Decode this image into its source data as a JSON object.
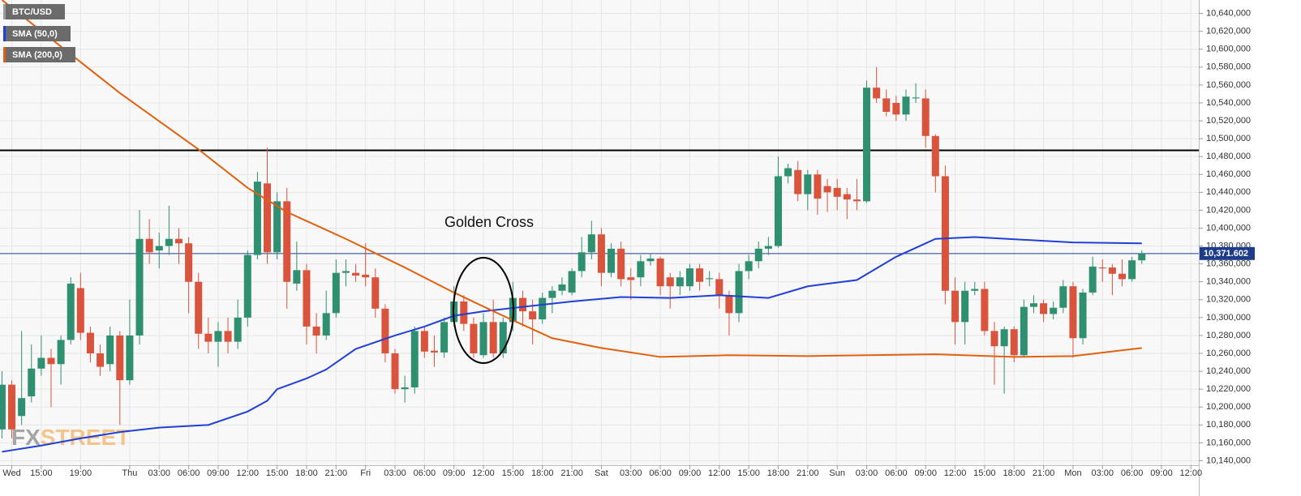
{
  "chart_data": {
    "type": "candlestick",
    "symbol": "BTC/USD",
    "up_color": "#2f8f71",
    "down_color": "#d9533d",
    "x": [
      -13,
      -12,
      -11,
      -10,
      -9,
      -8,
      -7,
      -6,
      -5,
      -4,
      -3,
      -2,
      -1,
      0,
      1,
      2,
      3,
      4,
      5,
      6,
      7,
      8,
      9,
      10,
      11,
      12,
      13,
      14,
      15,
      16,
      17,
      18,
      19,
      20,
      21,
      22,
      23,
      24,
      25,
      26,
      27,
      28,
      29,
      30,
      31,
      32,
      33,
      34,
      35,
      36,
      37,
      38,
      39,
      40,
      41,
      42,
      43,
      44,
      45,
      46,
      47,
      48,
      49,
      50,
      51,
      52,
      53,
      54,
      55,
      56,
      57,
      58,
      59,
      60,
      61,
      62,
      63,
      64,
      65,
      66,
      67,
      68,
      69,
      70,
      71,
      72,
      73,
      74,
      75,
      76,
      77,
      78,
      79,
      80,
      81,
      82,
      83,
      84,
      85,
      86,
      87,
      88,
      89,
      90,
      91,
      92,
      93,
      94,
      95,
      96,
      97,
      98,
      99,
      100,
      101,
      102,
      103
    ],
    "open": [
      10175,
      10225,
      10190,
      10212,
      10243,
      10255,
      10248,
      10275,
      10333,
      10283,
      10260,
      10248,
      10280,
      10230,
      10280,
      10388,
      10375,
      10380,
      10388,
      10383,
      10340,
      10282,
      10273,
      10285,
      10273,
      10300,
      10370,
      10450,
      10373,
      10430,
      10338,
      10353,
      10290,
      10280,
      10305,
      10350,
      10350,
      10348,
      10345,
      10310,
      10260,
      10220,
      10222,
      10285,
      10263,
      10261,
      10295,
      10318,
      10293,
      10258,
      10295,
      10260,
      10295,
      10322,
      10307,
      10298,
      10322,
      10330,
      10328,
      10352,
      10373,
      10393,
      10350,
      10377,
      10345,
      10345,
      10363,
      10366,
      10345,
      10335,
      10335,
      10355,
      10343,
      10343,
      10325,
      10305,
      10352,
      10363,
      10377,
      10380,
      10458,
      10465,
      10438,
      10460,
      10447,
      10445,
      10438,
      10432,
      10430,
      10557,
      10545,
      10540,
      10527,
      10545,
      10545,
      10503,
      10458,
      10330,
      10295,
      10330,
      10332,
      10285,
      10268,
      10287,
      10258,
      10312,
      10316,
      10304,
      10311,
      10335,
      10277,
      10328,
      10356,
      10356,
      10349,
      10343,
      10364
    ],
    "high": [
      10240,
      10230,
      10285,
      10270,
      10280,
      10265,
      10280,
      10345,
      10350,
      10290,
      10270,
      10290,
      10285,
      10320,
      10420,
      10410,
      10395,
      10425,
      10400,
      10390,
      10350,
      10300,
      10295,
      10300,
      10320,
      10375,
      10463,
      10490,
      10440,
      10445,
      10385,
      10360,
      10305,
      10330,
      10365,
      10365,
      10360,
      10383,
      10355,
      10315,
      10265,
      10235,
      10290,
      10290,
      10280,
      10300,
      10335,
      10325,
      10300,
      10305,
      10320,
      10300,
      10340,
      10330,
      10320,
      10328,
      10335,
      10345,
      10355,
      10390,
      10408,
      10400,
      10383,
      10385,
      10355,
      10370,
      10372,
      10368,
      10350,
      10352,
      10360,
      10360,
      10352,
      10350,
      10330,
      10360,
      10370,
      10385,
      10390,
      10480,
      10472,
      10475,
      10465,
      10465,
      10455,
      10455,
      10445,
      10455,
      10565,
      10580,
      10555,
      10548,
      10555,
      10562,
      10555,
      10505,
      10470,
      10345,
      10340,
      10340,
      10340,
      10295,
      10290,
      10290,
      10320,
      10325,
      10320,
      10318,
      10342,
      10340,
      10332,
      10368,
      10365,
      10360,
      10365,
      10368,
      10375
    ],
    "low": [
      10165,
      10165,
      10180,
      10205,
      10235,
      10200,
      10225,
      10270,
      10275,
      10250,
      10235,
      10240,
      10180,
      10225,
      10270,
      10360,
      10355,
      10370,
      10360,
      10305,
      10265,
      10260,
      10245,
      10260,
      10265,
      10290,
      10365,
      10360,
      10365,
      10310,
      10330,
      10270,
      10260,
      10275,
      10300,
      10335,
      10340,
      10335,
      10300,
      10250,
      10215,
      10205,
      10215,
      10255,
      10245,
      10255,
      10290,
      10285,
      10255,
      10255,
      10255,
      10255,
      10285,
      10290,
      10270,
      10293,
      10305,
      10325,
      10325,
      10345,
      10365,
      10335,
      10345,
      10335,
      10320,
      10335,
      10358,
      10325,
      10310,
      10325,
      10330,
      10330,
      10335,
      10310,
      10280,
      10295,
      10343,
      10355,
      10370,
      10378,
      10450,
      10430,
      10420,
      10415,
      10418,
      10420,
      10410,
      10420,
      10428,
      10540,
      10525,
      10520,
      10520,
      10540,
      10490,
      10440,
      10315,
      10270,
      10270,
      10325,
      10280,
      10225,
      10215,
      10250,
      10255,
      10305,
      10295,
      10298,
      10305,
      10255,
      10270,
      10325,
      10340,
      10325,
      10335,
      10340,
      10360
    ],
    "close": [
      10225,
      10175,
      10210,
      10243,
      10255,
      10248,
      10275,
      10338,
      10283,
      10260,
      10245,
      10280,
      10230,
      10280,
      10388,
      10373,
      10380,
      10388,
      10383,
      10340,
      10282,
      10273,
      10285,
      10273,
      10300,
      10370,
      10452,
      10373,
      10430,
      10340,
      10353,
      10290,
      10280,
      10305,
      10350,
      10352,
      10347,
      10345,
      10310,
      10260,
      10220,
      10222,
      10285,
      10262,
      10261,
      10295,
      10318,
      10293,
      10260,
      10295,
      10260,
      10295,
      10322,
      10307,
      10298,
      10322,
      10330,
      10337,
      10352,
      10373,
      10393,
      10350,
      10377,
      10343,
      10342,
      10363,
      10366,
      10335,
      10335,
      10345,
      10355,
      10340,
      10344,
      10325,
      10305,
      10352,
      10363,
      10377,
      10380,
      10458,
      10467,
      10438,
      10460,
      10433,
      10440,
      10435,
      10432,
      10430,
      10557,
      10545,
      10530,
      10527,
      10547,
      10546,
      10503,
      10458,
      10330,
      10295,
      10330,
      10332,
      10285,
      10268,
      10287,
      10258,
      10312,
      10316,
      10304,
      10311,
      10335,
      10277,
      10328,
      10357,
      10355,
      10349,
      10343,
      10364,
      10371.6
    ],
    "series": [
      {
        "name": "SMA (50,0)",
        "color": "#1f3fd6",
        "x": [
          -13,
          -9,
          -5,
          -1,
          3,
          8,
          12,
          14,
          15,
          18,
          20,
          23,
          27,
          30,
          33,
          36,
          40,
          45,
          50,
          55,
          60,
          65,
          69,
          74,
          78,
          82,
          86,
          91,
          96,
          103
        ],
        "values": [
          10150,
          10157,
          10165,
          10172,
          10177,
          10180,
          10195,
          10207,
          10220,
          10232,
          10242,
          10265,
          10280,
          10290,
          10302,
          10307,
          10312,
          10318,
          10323,
          10322,
          10325,
          10322,
          10335,
          10342,
          10368,
          10388,
          10390,
          10387,
          10384,
          10383
        ]
      },
      {
        "name": "SMA (200,0)",
        "color": "#e0600f",
        "x": [
          -13,
          -1,
          7,
          12,
          16,
          22,
          28,
          33,
          38,
          43,
          48,
          54,
          61,
          69,
          82,
          90,
          96,
          103
        ],
        "values": [
          10655,
          10551,
          10488,
          10445,
          10418,
          10388,
          10356,
          10328,
          10302,
          10277,
          10266,
          10256,
          10258,
          10257,
          10259,
          10256,
          10257,
          10266
        ]
      }
    ],
    "hlines": [
      {
        "value": 10487,
        "color": "#000000"
      }
    ],
    "last_price": {
      "value": 10371.602,
      "label": "10,371.602",
      "color": "#1e3c8c"
    },
    "annotations": [
      {
        "text": "Golden Cross"
      }
    ],
    "watermark": [
      "FX",
      "STREET"
    ],
    "grid": true,
    "xlim": [
      -13.2,
      108.8
    ],
    "ylim": [
      10135,
      10655
    ],
    "xticks": [
      {
        "value": -12,
        "label": "Wed"
      },
      {
        "value": -9,
        "label": "15:00"
      },
      {
        "value": -5,
        "label": "19:00"
      },
      {
        "value": 0,
        "label": "Thu"
      },
      {
        "value": 3,
        "label": "03:00"
      },
      {
        "value": 6,
        "label": "06:00"
      },
      {
        "value": 9,
        "label": "09:00"
      },
      {
        "value": 12,
        "label": "12:00"
      },
      {
        "value": 15,
        "label": "15:00"
      },
      {
        "value": 18,
        "label": "18:00"
      },
      {
        "value": 21,
        "label": "21:00"
      },
      {
        "value": 24,
        "label": "Fri"
      },
      {
        "value": 27,
        "label": "03:00"
      },
      {
        "value": 30,
        "label": "06:00"
      },
      {
        "value": 33,
        "label": "09:00"
      },
      {
        "value": 36,
        "label": "12:00"
      },
      {
        "value": 39,
        "label": "15:00"
      },
      {
        "value": 42,
        "label": "18:00"
      },
      {
        "value": 45,
        "label": "21:00"
      },
      {
        "value": 48,
        "label": "Sat"
      },
      {
        "value": 51,
        "label": "03:00"
      },
      {
        "value": 54,
        "label": "06:00"
      },
      {
        "value": 57,
        "label": "09:00"
      },
      {
        "value": 60,
        "label": "12:00"
      },
      {
        "value": 63,
        "label": "15:00"
      },
      {
        "value": 66,
        "label": "18:00"
      },
      {
        "value": 69,
        "label": "21:00"
      },
      {
        "value": 72,
        "label": "Sun"
      },
      {
        "value": 75,
        "label": "03:00"
      },
      {
        "value": 78,
        "label": "06:00"
      },
      {
        "value": 81,
        "label": "09:00"
      },
      {
        "value": 84,
        "label": "12:00"
      },
      {
        "value": 87,
        "label": "15:00"
      },
      {
        "value": 90,
        "label": "18:00"
      },
      {
        "value": 93,
        "label": "21:00"
      },
      {
        "value": 96,
        "label": "Mon"
      },
      {
        "value": 99,
        "label": "03:00"
      },
      {
        "value": 102,
        "label": "06:00"
      },
      {
        "value": 105,
        "label": "09:00"
      },
      {
        "value": 108,
        "label": "12:00"
      }
    ],
    "yticks": [
      {
        "value": 10140,
        "label": "10,140,000"
      },
      {
        "value": 10160,
        "label": "10,160,000"
      },
      {
        "value": 10180,
        "label": "10,180,000"
      },
      {
        "value": 10200,
        "label": "10,200,000"
      },
      {
        "value": 10220,
        "label": "10,220,000"
      },
      {
        "value": 10240,
        "label": "10,240,000"
      },
      {
        "value": 10260,
        "label": "10,260,000"
      },
      {
        "value": 10280,
        "label": "10,280,000"
      },
      {
        "value": 10300,
        "label": "10,300,000"
      },
      {
        "value": 10320,
        "label": "10,320,000"
      },
      {
        "value": 10340,
        "label": "10,340,000"
      },
      {
        "value": 10360,
        "label": "10,360,000"
      },
      {
        "value": 10380,
        "label": "10,380,000"
      },
      {
        "value": 10400,
        "label": "10,400,000"
      },
      {
        "value": 10420,
        "label": "10,420,000"
      },
      {
        "value": 10440,
        "label": "10,440,000"
      },
      {
        "value": 10460,
        "label": "10,460,000"
      },
      {
        "value": 10480,
        "label": "10,480,000"
      },
      {
        "value": 10500,
        "label": "10,500,000"
      },
      {
        "value": 10520,
        "label": "10,520,000"
      },
      {
        "value": 10540,
        "label": "10,540,000"
      },
      {
        "value": 10560,
        "label": "10,560,000"
      },
      {
        "value": 10580,
        "label": "10,580,000"
      },
      {
        "value": 10600,
        "label": "10,600,000"
      },
      {
        "value": 10620,
        "label": "10,620,000"
      },
      {
        "value": 10640,
        "label": "10,640,000"
      }
    ]
  }
}
